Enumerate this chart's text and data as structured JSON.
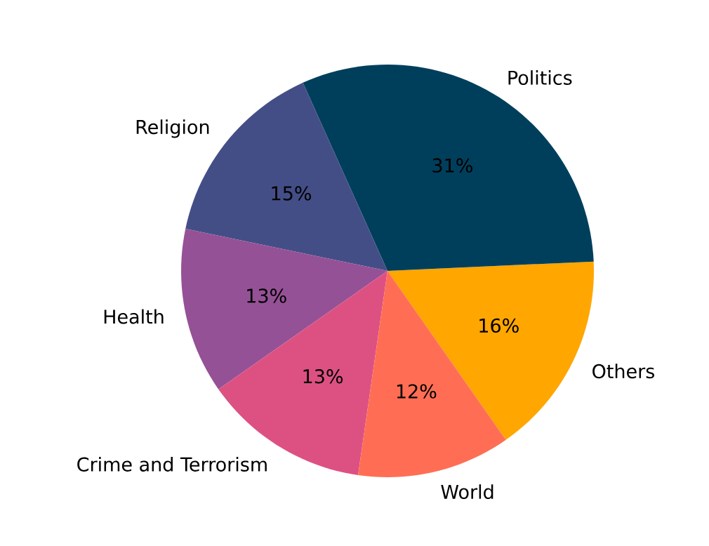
{
  "chart_data": {
    "type": "pie",
    "categories": [
      "Others",
      "Politics",
      "Religion",
      "Health",
      "Crime and Terrorism",
      "World"
    ],
    "values": [
      16,
      31,
      15,
      13,
      13,
      12
    ],
    "colors": [
      "#ffa600",
      "#003f5c",
      "#444e86",
      "#955196",
      "#dd5182",
      "#ff6e54"
    ],
    "value_labels": [
      "16%",
      "31%",
      "15%",
      "13%",
      "13%",
      "12%"
    ]
  }
}
